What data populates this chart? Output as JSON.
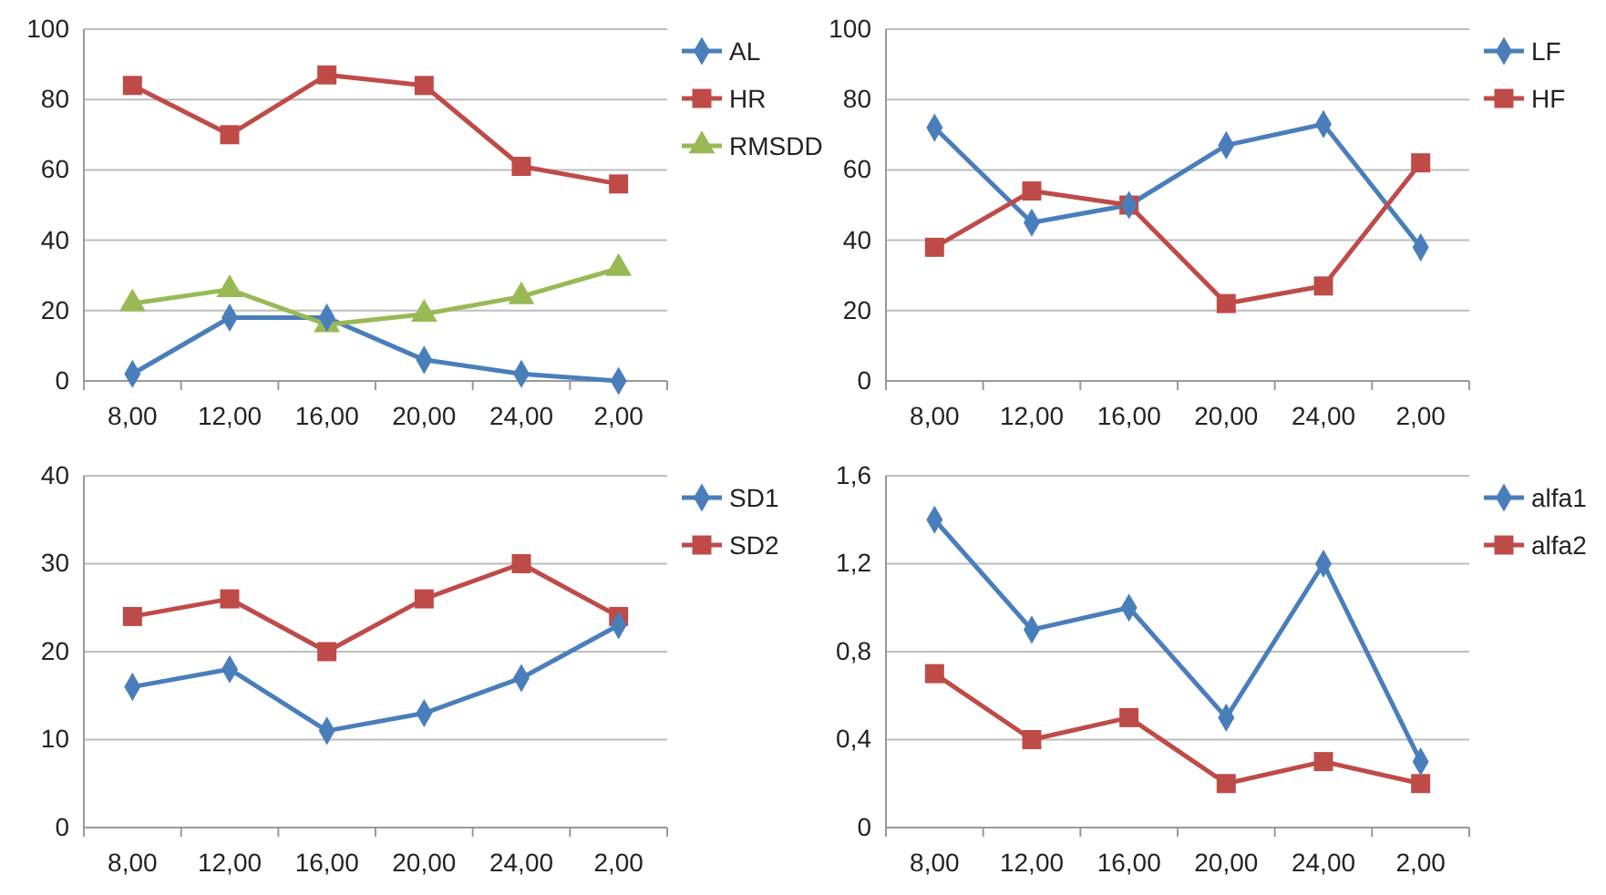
{
  "chart_data": [
    {
      "type": "line",
      "categories": [
        "8,00",
        "12,00",
        "16,00",
        "20,00",
        "24,00",
        "2,00"
      ],
      "ylim": [
        0,
        100
      ],
      "yticks": [
        0,
        20,
        40,
        60,
        80,
        100
      ],
      "grid": "y",
      "legend": "right",
      "series": [
        {
          "name": "AL",
          "color": "#4a7ebb",
          "marker": "diamond",
          "values": [
            2,
            18,
            18,
            6,
            2,
            0
          ]
        },
        {
          "name": "HR",
          "color": "#be4b48",
          "marker": "square",
          "values": [
            84,
            70,
            87,
            84,
            61,
            56
          ]
        },
        {
          "name": "RMSDD",
          "color": "#98b954",
          "marker": "triangle",
          "values": [
            22,
            26,
            16,
            19,
            24,
            32
          ]
        }
      ]
    },
    {
      "type": "line",
      "categories": [
        "8,00",
        "12,00",
        "16,00",
        "20,00",
        "24,00",
        "2,00"
      ],
      "ylim": [
        0,
        100
      ],
      "yticks": [
        0,
        20,
        40,
        60,
        80,
        100
      ],
      "grid": "y",
      "legend": "right",
      "series": [
        {
          "name": "LF",
          "color": "#4a7ebb",
          "marker": "diamond",
          "values": [
            72,
            45,
            50,
            67,
            73,
            38
          ]
        },
        {
          "name": "HF",
          "color": "#be4b48",
          "marker": "square",
          "values": [
            38,
            54,
            50,
            22,
            27,
            62
          ]
        }
      ]
    },
    {
      "type": "line",
      "categories": [
        "8,00",
        "12,00",
        "16,00",
        "20,00",
        "24,00",
        "2,00"
      ],
      "ylim": [
        0,
        40
      ],
      "yticks": [
        0,
        10,
        20,
        30,
        40
      ],
      "grid": "y",
      "legend": "right",
      "series": [
        {
          "name": "SD1",
          "color": "#4a7ebb",
          "marker": "diamond",
          "values": [
            16,
            18,
            11,
            13,
            17,
            23
          ]
        },
        {
          "name": "SD2",
          "color": "#be4b48",
          "marker": "square",
          "values": [
            24,
            26,
            20,
            26,
            30,
            24
          ]
        }
      ]
    },
    {
      "type": "line",
      "categories": [
        "8,00",
        "12,00",
        "16,00",
        "20,00",
        "24,00",
        "2,00"
      ],
      "ylim": [
        0,
        1.6
      ],
      "yticks": [
        0,
        {
          "value": 0.4,
          "label": "0,4"
        },
        {
          "value": 0.8,
          "label": "0,8"
        },
        {
          "value": 1.2,
          "label": "1,2"
        },
        {
          "value": 1.6,
          "label": "1,6"
        }
      ],
      "grid": "y",
      "legend": "right",
      "series": [
        {
          "name": "alfa1",
          "color": "#4a7ebb",
          "marker": "diamond",
          "values": [
            1.4,
            0.9,
            1.0,
            0.5,
            1.2,
            0.3
          ]
        },
        {
          "name": "alfa2",
          "color": "#be4b48",
          "marker": "square",
          "values": [
            0.7,
            0.4,
            0.5,
            0.2,
            0.3,
            0.2
          ]
        }
      ]
    }
  ]
}
